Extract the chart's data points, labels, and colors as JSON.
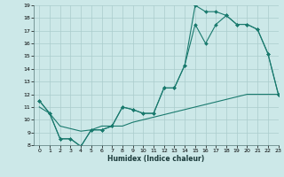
{
  "xlabel": "Humidex (Indice chaleur)",
  "bg_color": "#cce8e8",
  "grid_color": "#aacccc",
  "line_color": "#1a7a6e",
  "line1_x": [
    0,
    1,
    2,
    3,
    4,
    5,
    6,
    7,
    8,
    9,
    10,
    11,
    12,
    13,
    14,
    15,
    16,
    17,
    18,
    19,
    20,
    21,
    22,
    23
  ],
  "line1_y": [
    11.5,
    10.5,
    8.5,
    8.5,
    7.9,
    9.2,
    9.2,
    9.5,
    11.0,
    10.8,
    10.5,
    10.5,
    12.5,
    12.5,
    14.3,
    19.0,
    18.5,
    18.5,
    18.2,
    17.5,
    17.5,
    17.1,
    15.2,
    12.0
  ],
  "line2_x": [
    0,
    1,
    2,
    3,
    4,
    5,
    6,
    7,
    8,
    9,
    10,
    11,
    12,
    13,
    14,
    15,
    16,
    17,
    18,
    19,
    20,
    21,
    22,
    23
  ],
  "line2_y": [
    11.5,
    10.5,
    8.5,
    8.5,
    7.9,
    9.2,
    9.2,
    9.5,
    11.0,
    10.8,
    10.5,
    10.5,
    12.5,
    12.5,
    14.3,
    17.5,
    16.0,
    17.5,
    18.2,
    17.5,
    17.5,
    17.1,
    15.2,
    12.0
  ],
  "line3_x": [
    0,
    1,
    2,
    3,
    4,
    5,
    6,
    7,
    8,
    9,
    10,
    11,
    12,
    13,
    14,
    15,
    16,
    17,
    18,
    19,
    20,
    21,
    22,
    23
  ],
  "line3_y": [
    11.0,
    10.5,
    9.5,
    9.3,
    9.1,
    9.2,
    9.5,
    9.5,
    9.5,
    9.8,
    10.0,
    10.2,
    10.4,
    10.6,
    10.8,
    11.0,
    11.2,
    11.4,
    11.6,
    11.8,
    12.0,
    12.0,
    12.0,
    12.0
  ],
  "ylim": [
    8,
    19
  ],
  "xlim": [
    -0.5,
    23
  ],
  "yticks": [
    8,
    9,
    10,
    11,
    12,
    13,
    14,
    15,
    16,
    17,
    18,
    19
  ],
  "xticks": [
    0,
    1,
    2,
    3,
    4,
    5,
    6,
    7,
    8,
    9,
    10,
    11,
    12,
    13,
    14,
    15,
    16,
    17,
    18,
    19,
    20,
    21,
    22,
    23
  ]
}
